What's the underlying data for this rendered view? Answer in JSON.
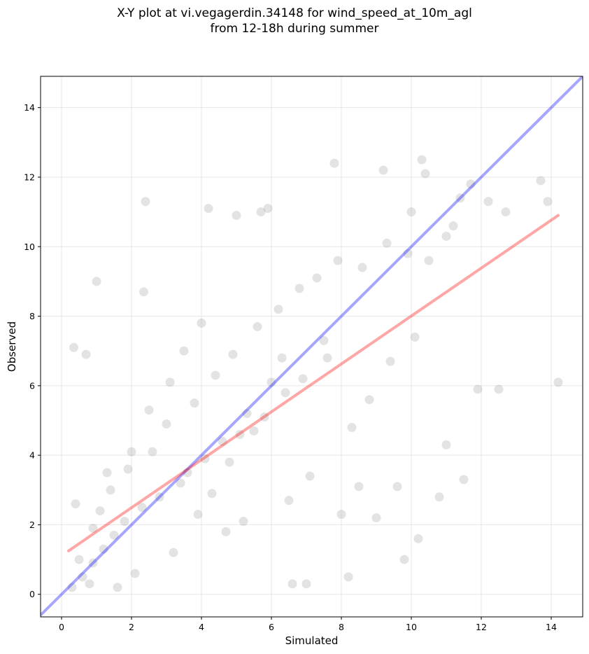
{
  "chart_data": {
    "type": "scatter",
    "title_line1": "X-Y plot at vi.vegagerdin.34148 for wind_speed_at_10m_agl",
    "title_line2": "from 12-18h during summer",
    "xlabel": "Simulated",
    "ylabel": "Observed",
    "xlim": [
      -0.6,
      14.9
    ],
    "ylim": [
      -0.65,
      14.9
    ],
    "xticks": [
      0,
      2,
      4,
      6,
      8,
      10,
      12,
      14
    ],
    "yticks": [
      0,
      2,
      4,
      6,
      8,
      10,
      12,
      14
    ],
    "grid": true,
    "colors": {
      "points": "#808080",
      "identity_line": "#0000ff",
      "fit_line": "#ff0000"
    },
    "identity_line": {
      "x": [
        -0.6,
        14.9
      ],
      "y": [
        -0.6,
        14.9
      ]
    },
    "fit_line": {
      "x": [
        0.2,
        14.2
      ],
      "y": [
        1.25,
        10.9
      ]
    },
    "points": {
      "x": [
        0.35,
        0.7,
        1.0,
        2.4,
        2.35,
        4.2,
        5.0,
        5.7,
        5.9,
        7.8,
        9.2,
        10.3,
        10.4,
        10.0,
        11.2,
        11.4,
        11.7,
        11.9,
        12.2,
        12.7,
        13.7,
        13.9,
        14.2,
        9.8,
        10.2,
        11.5,
        12.5,
        8.2,
        7.0,
        6.6,
        8.0,
        8.5,
        9.0,
        9.6,
        10.8,
        11.0,
        7.5,
        6.3,
        6.0,
        5.3,
        5.5,
        4.6,
        4.1,
        3.6,
        3.4,
        2.8,
        2.3,
        1.8,
        1.5,
        1.2,
        0.9,
        0.6,
        0.3,
        0.5,
        0.8,
        1.1,
        1.4,
        1.9,
        2.6,
        3.0,
        3.8,
        4.4,
        4.9,
        5.6,
        6.2,
        6.8,
        7.3,
        7.9,
        8.6,
        9.3,
        9.9,
        10.5,
        11.0,
        3.2,
        2.1,
        1.6,
        4.7,
        5.2,
        6.5,
        7.1,
        8.3,
        8.8,
        9.4,
        10.1,
        3.9,
        4.3,
        4.8,
        5.1,
        5.8,
        6.4,
        6.9,
        7.6,
        2.5,
        3.1,
        3.5,
        4.0,
        2.0,
        1.3,
        0.9,
        0.4
      ],
      "y": [
        7.1,
        6.9,
        9.0,
        11.3,
        8.7,
        11.1,
        10.9,
        11.0,
        11.1,
        12.4,
        12.2,
        12.5,
        12.1,
        11.0,
        10.6,
        11.4,
        11.8,
        5.9,
        11.3,
        11.0,
        11.9,
        11.3,
        6.1,
        1.0,
        1.6,
        3.3,
        5.9,
        0.5,
        0.3,
        0.3,
        2.3,
        3.1,
        2.2,
        3.1,
        2.8,
        4.3,
        7.3,
        6.8,
        6.1,
        5.2,
        4.7,
        4.4,
        3.9,
        3.5,
        3.2,
        2.8,
        2.5,
        2.1,
        1.7,
        1.3,
        0.9,
        0.5,
        0.2,
        1.0,
        0.3,
        2.4,
        3.0,
        3.6,
        4.1,
        4.9,
        5.5,
        6.3,
        6.9,
        7.7,
        8.2,
        8.8,
        9.1,
        9.6,
        9.4,
        10.1,
        9.8,
        9.6,
        10.3,
        1.2,
        0.6,
        0.2,
        1.8,
        2.1,
        2.7,
        3.4,
        4.8,
        5.6,
        6.7,
        7.4,
        2.3,
        2.9,
        3.8,
        4.6,
        5.1,
        5.8,
        6.2,
        6.8,
        5.3,
        6.1,
        7.0,
        7.8,
        4.1,
        3.5,
        1.9,
        2.6
      ]
    }
  }
}
